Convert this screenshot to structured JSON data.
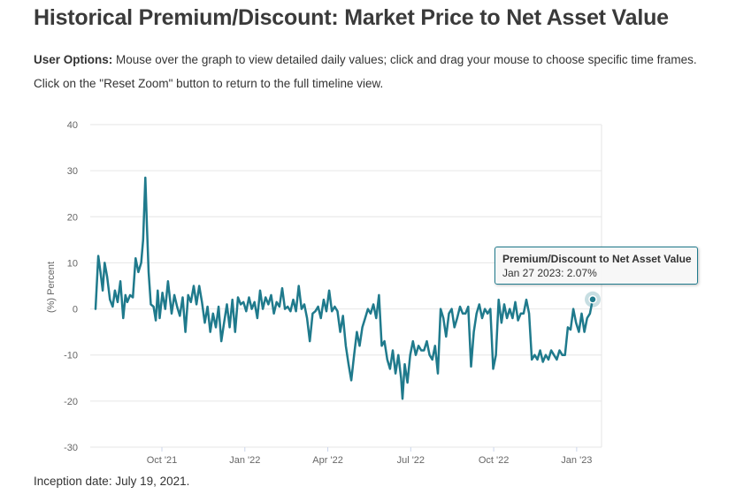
{
  "page": {
    "title": "Historical Premium/Discount: Market Price to Net Asset Value",
    "options_label": "User Options:",
    "options_text": " Mouse over the graph to view detailed daily values; click and drag your mouse to choose specific time frames. Click on the \"Reset Zoom\" button to return to the full timeline view.",
    "inception": "Inception date: July 19, 2021."
  },
  "tooltip": {
    "title": "Premium/Discount to Net Asset Value",
    "date": "Jan 27 2023",
    "value": "2.07%"
  },
  "colors": {
    "line": "#1f7a8c",
    "grid": "#e6e6e6",
    "axis_text": "#666666"
  },
  "chart_data": {
    "type": "line",
    "title": "",
    "xlabel": "",
    "ylabel": "(%) Percent",
    "ylim": [
      -30,
      40
    ],
    "yticks": [
      40,
      30,
      20,
      10,
      0,
      -10,
      -20,
      -30
    ],
    "xticks": [
      {
        "label": "Oct '21",
        "t": 2.4
      },
      {
        "label": "Jan '22",
        "t": 5.4
      },
      {
        "label": "Apr '22",
        "t": 8.4
      },
      {
        "label": "Jul '22",
        "t": 11.4
      },
      {
        "label": "Oct '22",
        "t": 14.4
      },
      {
        "label": "Jan '23",
        "t": 17.4
      }
    ],
    "xlim": [
      0,
      18.3
    ],
    "grid": true,
    "series": [
      {
        "name": "Premium/Discount to Net Asset Value",
        "points": [
          [
            0.0,
            0
          ],
          [
            0.1,
            11.5
          ],
          [
            0.18,
            8
          ],
          [
            0.26,
            4
          ],
          [
            0.33,
            10
          ],
          [
            0.42,
            7
          ],
          [
            0.52,
            2
          ],
          [
            0.62,
            0.5
          ],
          [
            0.7,
            4
          ],
          [
            0.8,
            1.5
          ],
          [
            0.9,
            6
          ],
          [
            1.0,
            -2
          ],
          [
            1.08,
            3
          ],
          [
            1.15,
            1.5
          ],
          [
            1.25,
            3
          ],
          [
            1.35,
            2.5
          ],
          [
            1.45,
            11
          ],
          [
            1.55,
            8
          ],
          [
            1.65,
            10
          ],
          [
            1.72,
            15
          ],
          [
            1.8,
            28.5
          ],
          [
            1.86,
            18
          ],
          [
            1.92,
            8
          ],
          [
            2.0,
            1
          ],
          [
            2.1,
            0.5
          ],
          [
            2.18,
            -2.5
          ],
          [
            2.25,
            4
          ],
          [
            2.32,
            -2
          ],
          [
            2.42,
            3.5
          ],
          [
            2.52,
            0
          ],
          [
            2.62,
            6
          ],
          [
            2.75,
            -1
          ],
          [
            2.85,
            3
          ],
          [
            2.95,
            0.5
          ],
          [
            3.05,
            -1.5
          ],
          [
            3.15,
            2.5
          ],
          [
            3.25,
            -5
          ],
          [
            3.35,
            3
          ],
          [
            3.45,
            1.5
          ],
          [
            3.55,
            5
          ],
          [
            3.65,
            1
          ],
          [
            3.75,
            5
          ],
          [
            3.85,
            1.5
          ],
          [
            3.95,
            -3
          ],
          [
            4.05,
            0.5
          ],
          [
            4.15,
            -5
          ],
          [
            4.25,
            -1
          ],
          [
            4.35,
            -4
          ],
          [
            4.45,
            0.5
          ],
          [
            4.55,
            -7
          ],
          [
            4.65,
            -3
          ],
          [
            4.75,
            1
          ],
          [
            4.85,
            -4
          ],
          [
            4.95,
            2
          ],
          [
            5.05,
            -5
          ],
          [
            5.15,
            2.5
          ],
          [
            5.25,
            1
          ],
          [
            5.35,
            1.5
          ],
          [
            5.45,
            -0.5
          ],
          [
            5.55,
            2.5
          ],
          [
            5.65,
            0
          ],
          [
            5.75,
            1.5
          ],
          [
            5.85,
            -2
          ],
          [
            5.95,
            4
          ],
          [
            6.05,
            0
          ],
          [
            6.15,
            2.5
          ],
          [
            6.25,
            1
          ],
          [
            6.35,
            3
          ],
          [
            6.45,
            -1
          ],
          [
            6.55,
            1.5
          ],
          [
            6.65,
            0.5
          ],
          [
            6.75,
            4.5
          ],
          [
            6.85,
            0
          ],
          [
            6.95,
            0.5
          ],
          [
            7.05,
            -0.5
          ],
          [
            7.15,
            2
          ],
          [
            7.25,
            -0.5
          ],
          [
            7.35,
            5
          ],
          [
            7.45,
            0
          ],
          [
            7.55,
            1
          ],
          [
            7.65,
            -2
          ],
          [
            7.75,
            -7
          ],
          [
            7.85,
            -1
          ],
          [
            7.95,
            -0.5
          ],
          [
            8.05,
            0.5
          ],
          [
            8.15,
            -2
          ],
          [
            8.25,
            2
          ],
          [
            8.35,
            -0.5
          ],
          [
            8.45,
            4
          ],
          [
            8.55,
            -0.5
          ],
          [
            8.65,
            0.5
          ],
          [
            8.75,
            -0.5
          ],
          [
            8.85,
            -5
          ],
          [
            8.95,
            -1.5
          ],
          [
            9.05,
            -8
          ],
          [
            9.15,
            -12
          ],
          [
            9.25,
            -15.5
          ],
          [
            9.35,
            -10
          ],
          [
            9.45,
            -5
          ],
          [
            9.55,
            -8
          ],
          [
            9.65,
            -4
          ],
          [
            9.75,
            -2
          ],
          [
            9.85,
            0
          ],
          [
            9.95,
            -1
          ],
          [
            10.05,
            1
          ],
          [
            10.15,
            -2
          ],
          [
            10.25,
            3
          ],
          [
            10.35,
            -8
          ],
          [
            10.45,
            -7
          ],
          [
            10.55,
            -11
          ],
          [
            10.65,
            -13
          ],
          [
            10.75,
            -9
          ],
          [
            10.85,
            -14
          ],
          [
            10.95,
            -10
          ],
          [
            11.05,
            -15
          ],
          [
            11.1,
            -19.5
          ],
          [
            11.18,
            -12
          ],
          [
            11.28,
            -16
          ],
          [
            11.38,
            -10
          ],
          [
            11.48,
            -7
          ],
          [
            11.58,
            -10
          ],
          [
            11.68,
            -8
          ],
          [
            11.78,
            -9
          ],
          [
            11.88,
            -9
          ],
          [
            11.98,
            -7
          ],
          [
            12.08,
            -10
          ],
          [
            12.18,
            -11
          ],
          [
            12.28,
            -8
          ],
          [
            12.38,
            -14
          ],
          [
            12.48,
            0
          ],
          [
            12.58,
            -2
          ],
          [
            12.68,
            -6
          ],
          [
            12.78,
            -1
          ],
          [
            12.88,
            0
          ],
          [
            12.98,
            -4
          ],
          [
            13.08,
            -2
          ],
          [
            13.18,
            0.5
          ],
          [
            13.28,
            -1
          ],
          [
            13.38,
            -1
          ],
          [
            13.48,
            0.5
          ],
          [
            13.58,
            -12.5
          ],
          [
            13.68,
            -5
          ],
          [
            13.78,
            -1
          ],
          [
            13.88,
            1
          ],
          [
            13.98,
            -2
          ],
          [
            14.08,
            0
          ],
          [
            14.18,
            -1
          ],
          [
            14.28,
            0
          ],
          [
            14.38,
            -13
          ],
          [
            14.48,
            -10
          ],
          [
            14.58,
            2
          ],
          [
            14.68,
            -3
          ],
          [
            14.78,
            1
          ],
          [
            14.88,
            -2
          ],
          [
            14.98,
            0
          ],
          [
            15.08,
            -2
          ],
          [
            15.18,
            1.5
          ],
          [
            15.28,
            -2.5
          ],
          [
            15.38,
            -1
          ],
          [
            15.48,
            -1
          ],
          [
            15.58,
            2
          ],
          [
            15.68,
            -1
          ],
          [
            15.78,
            -11
          ],
          [
            15.88,
            -10
          ],
          [
            15.98,
            -11
          ],
          [
            16.08,
            -9
          ],
          [
            16.18,
            -11.5
          ],
          [
            16.28,
            -10
          ],
          [
            16.38,
            -11
          ],
          [
            16.48,
            -9
          ],
          [
            16.58,
            -10
          ],
          [
            16.68,
            -11
          ],
          [
            16.78,
            -9
          ],
          [
            16.88,
            -10
          ],
          [
            16.98,
            -10
          ],
          [
            17.08,
            -4
          ],
          [
            17.18,
            -4.5
          ],
          [
            17.28,
            0
          ],
          [
            17.38,
            -3
          ],
          [
            17.48,
            -5
          ],
          [
            17.58,
            -1
          ],
          [
            17.68,
            -5
          ],
          [
            17.78,
            -2
          ],
          [
            17.88,
            -1
          ],
          [
            17.98,
            2.07
          ]
        ]
      }
    ],
    "highlight": {
      "t": 17.98,
      "value": 2.07
    }
  }
}
